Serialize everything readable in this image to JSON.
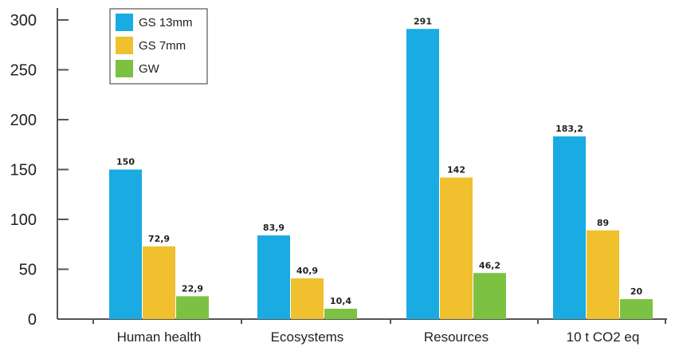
{
  "chart_data": {
    "type": "bar",
    "categories": [
      "Human health",
      "Ecosystems",
      "Resources",
      "10 t CO2 eq"
    ],
    "series": [
      {
        "name": "GS 13mm",
        "color": "#19ABE2",
        "values": [
          150,
          83.9,
          291,
          183.2
        ],
        "labels": [
          "150",
          "83,9",
          "291",
          "183,2"
        ]
      },
      {
        "name": "GS 7mm",
        "color": "#F0C02E",
        "values": [
          72.9,
          40.9,
          142,
          89
        ],
        "labels": [
          "72,9",
          "40,9",
          "142",
          "89"
        ]
      },
      {
        "name": "GW",
        "color": "#7CC242",
        "values": [
          22.9,
          10.4,
          46.2,
          20
        ],
        "labels": [
          "22,9",
          "10,4",
          "46,2",
          "20"
        ]
      }
    ],
    "yticks": [
      "0",
      "50",
      "100",
      "150",
      "200",
      "250",
      "300"
    ],
    "ylim": [
      0,
      300
    ],
    "grid": false,
    "legend_position": "top-left"
  }
}
